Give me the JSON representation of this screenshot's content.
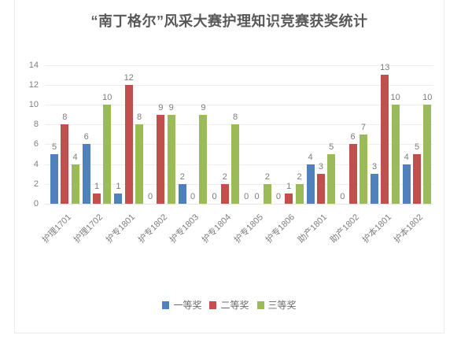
{
  "title": "“南丁格尔”风采大赛护理知识竞赛获奖统计",
  "chart_data": {
    "type": "bar",
    "title": "“南丁格尔”风采大赛护理知识竞赛获奖统计",
    "categories": [
      "护理1701",
      "护理1702",
      "护专1801",
      "护专1802",
      "护专1803",
      "护专1804",
      "护专1805",
      "护专1806",
      "助产1801",
      "助产1802",
      "护本1801",
      "护本1802"
    ],
    "series": [
      {
        "name": "一等奖",
        "color": "#4F81BD",
        "values": [
          5,
          6,
          1,
          0,
          2,
          0,
          0,
          0,
          4,
          0,
          3,
          4
        ]
      },
      {
        "name": "二等奖",
        "color": "#C0504D",
        "values": [
          8,
          1,
          12,
          9,
          0,
          2,
          0,
          1,
          3,
          6,
          13,
          5
        ]
      },
      {
        "name": "三等奖",
        "color": "#9BBB59",
        "values": [
          4,
          10,
          8,
          9,
          9,
          8,
          2,
          2,
          5,
          7,
          10,
          10
        ]
      }
    ],
    "xlabel": "",
    "ylabel": "",
    "ylim": [
      0,
      14
    ],
    "yticks": [
      0,
      2,
      4,
      6,
      8,
      10,
      12,
      14
    ],
    "grid": true,
    "data_labels": true,
    "legend_position": "bottom"
  },
  "colors": {
    "series_blue": "#4F81BD",
    "series_red": "#C0504D",
    "series_green": "#9BBB59",
    "text_gray": "#7f7f7f",
    "title_gray": "#595959",
    "gridline": "#efefef",
    "card_border": "#ececec"
  }
}
